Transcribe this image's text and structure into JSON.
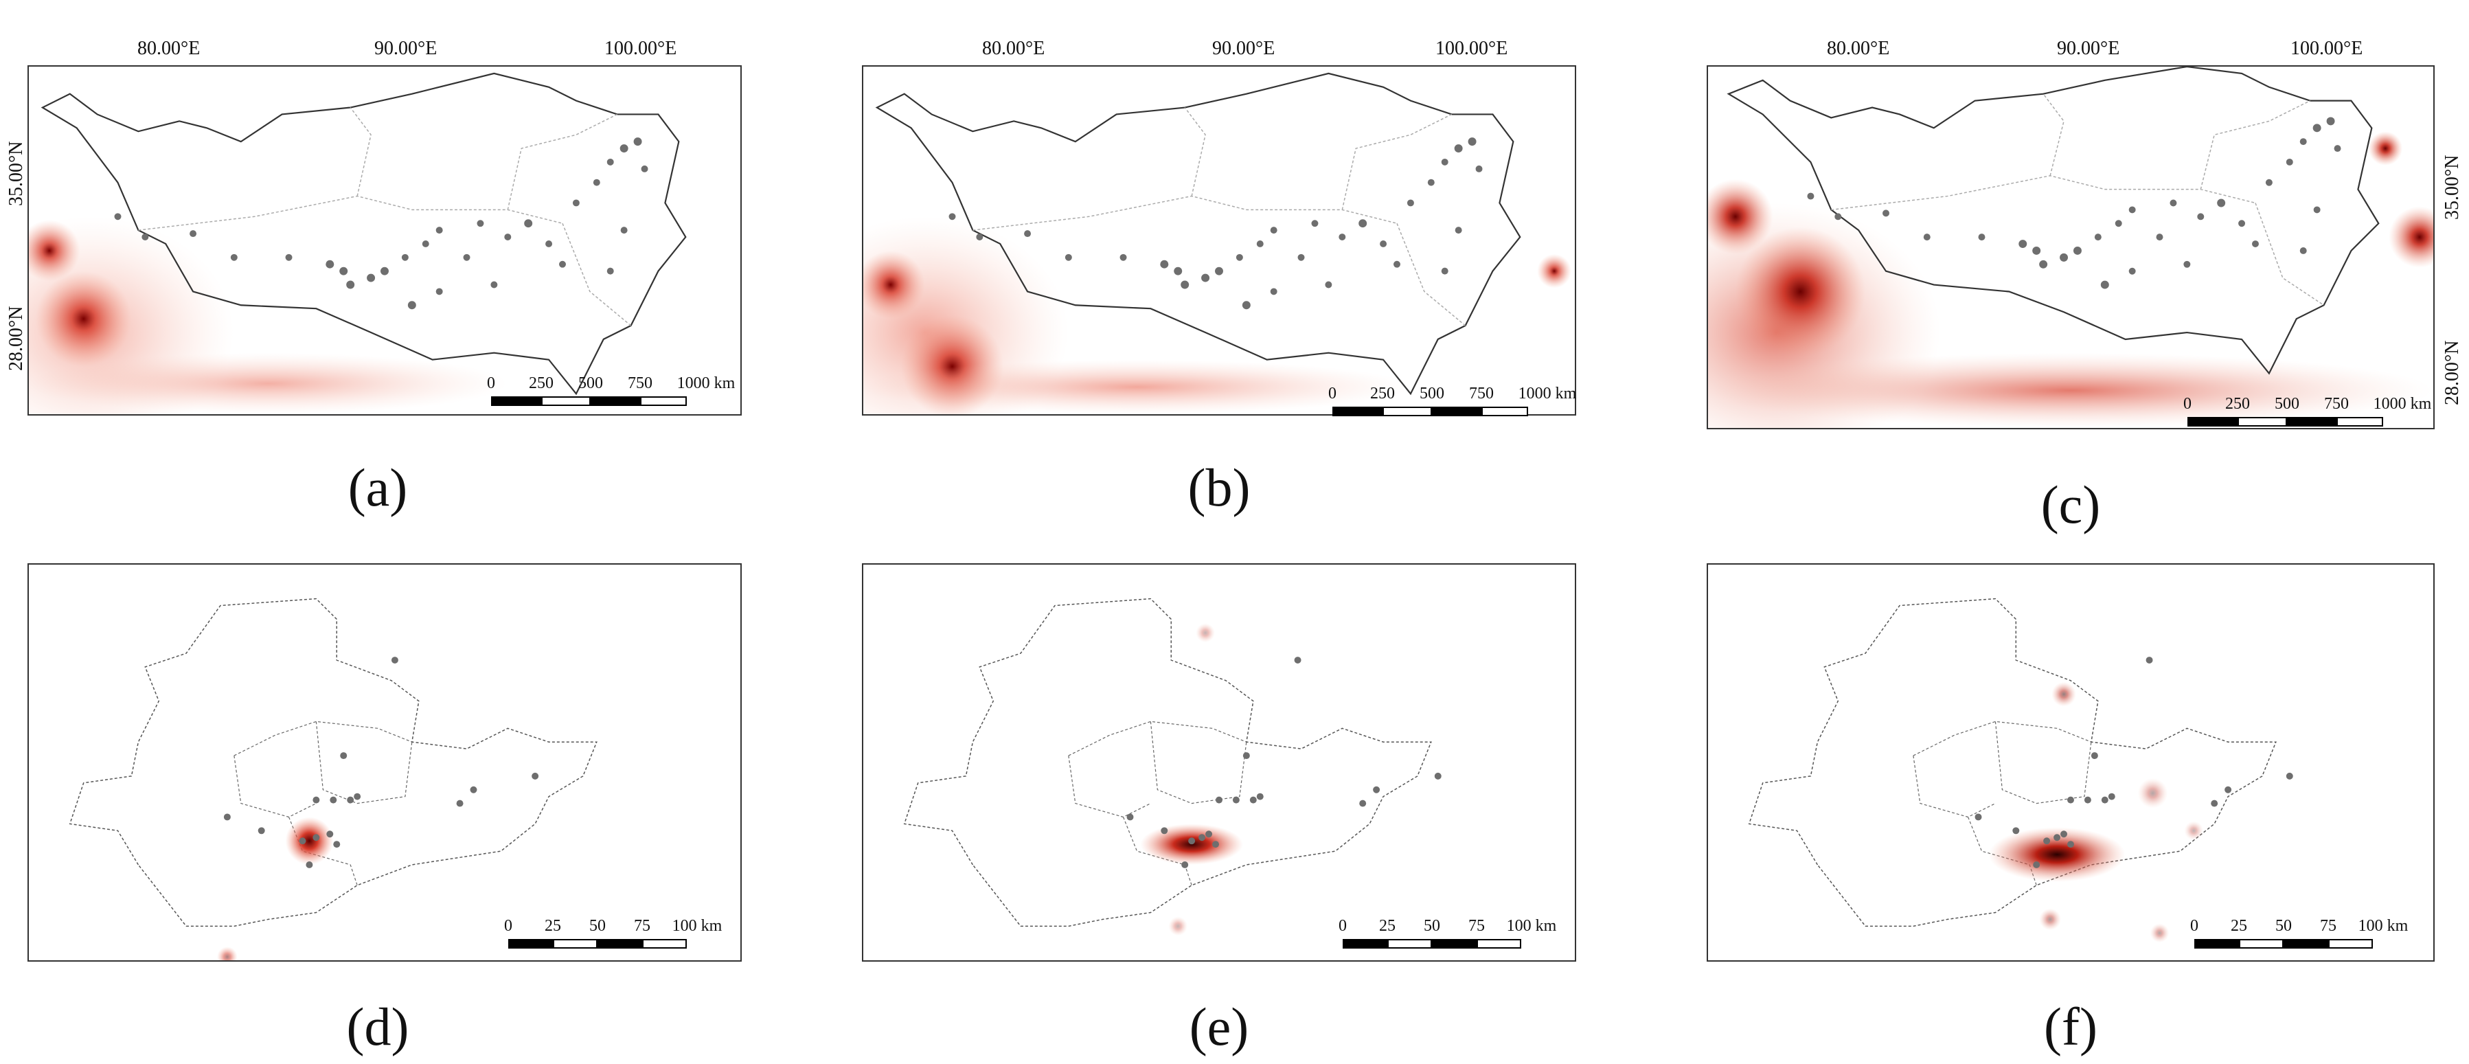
{
  "panels": [
    {
      "letter": "(a)"
    },
    {
      "letter": "(b)"
    },
    {
      "letter": "(c)"
    },
    {
      "letter": "(d)"
    },
    {
      "letter": "(e)"
    },
    {
      "letter": "(f)"
    }
  ],
  "longitude_labels": [
    "80.00°E",
    "90.00°E",
    "100.00°E"
  ],
  "latitude_labels": [
    "35.00°N",
    "28.00°N"
  ],
  "scalebar_large": {
    "ticks": [
      "0",
      "250",
      "500",
      "750",
      "1000 km"
    ]
  },
  "scalebar_small": {
    "ticks": [
      "0",
      "25",
      "50",
      "75",
      "100 km"
    ]
  },
  "colors": {
    "nightlight": "#d73a2a",
    "nightlight_core": "#5a0000",
    "site": "#6e6e6e",
    "boundary": "#333333",
    "province": "#aaaaaa"
  }
}
